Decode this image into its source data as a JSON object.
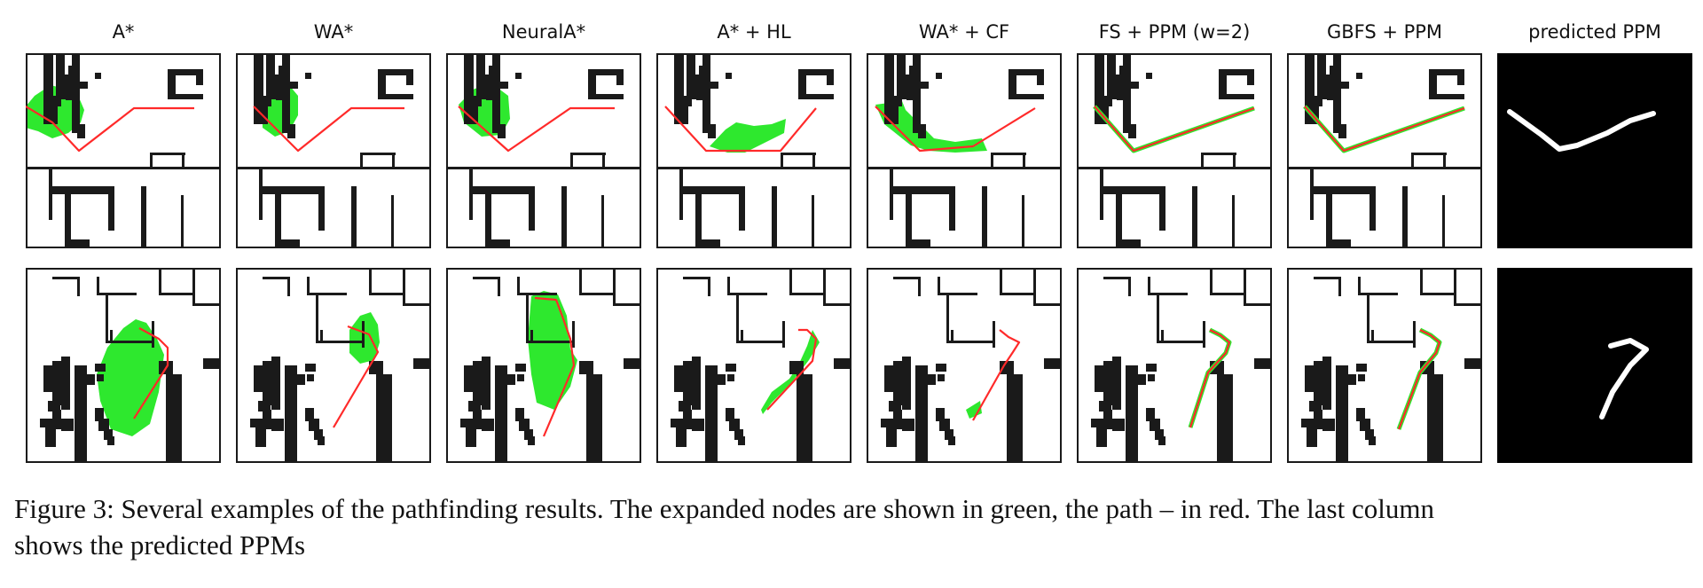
{
  "figure": {
    "columns": [
      {
        "key": "astar",
        "title": "A*"
      },
      {
        "key": "wastar",
        "title": "WA*"
      },
      {
        "key": "neuralastar",
        "title": "NeuralA*"
      },
      {
        "key": "astar_hl",
        "title": "A* + HL"
      },
      {
        "key": "wastar_cf",
        "title": "WA* + CF"
      },
      {
        "key": "fs_ppm",
        "title": "FS + PPM (w=2)"
      },
      {
        "key": "gbfs_ppm",
        "title": "GBFS + PPM"
      },
      {
        "key": "predicted_ppm",
        "title": "predicted PPM"
      }
    ],
    "rows": 2,
    "colors": {
      "background": "#ffffff",
      "obstacle": "#1a1a1a",
      "expanded": "#2ee82e",
      "path": "#ff2a2a",
      "ppm_background": "#000000",
      "ppm_stroke": "#ffffff"
    }
  },
  "caption": {
    "line1": "Figure 3: Several examples of the pathfinding results. The expanded nodes are shown in green, the path – in red. The last column",
    "line2": "shows the predicted PPMs"
  }
}
